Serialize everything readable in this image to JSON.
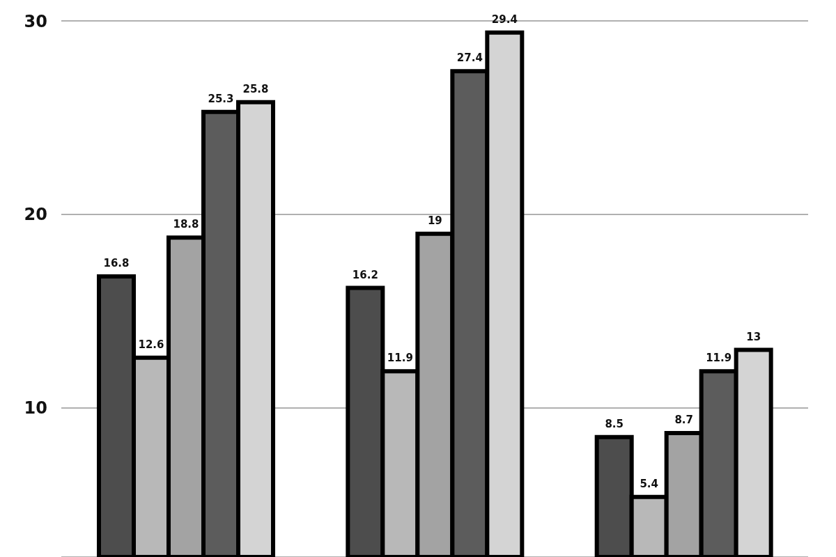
{
  "chart_data": {
    "type": "bar",
    "categories": [
      null,
      null,
      null
    ],
    "series": [
      {
        "color": "#4d4d4d",
        "values": [
          16.8,
          16.2,
          8.5
        ]
      },
      {
        "color": "#b8b8b8",
        "values": [
          12.6,
          11.9,
          5.4
        ]
      },
      {
        "color": "#a3a3a3",
        "values": [
          18.8,
          19,
          8.7
        ]
      },
      {
        "color": "#5c5c5c",
        "values": [
          25.3,
          27.4,
          11.9
        ]
      },
      {
        "color": "#d4d4d4",
        "values": [
          25.8,
          29.4,
          13
        ]
      }
    ],
    "ylim": [
      2.3,
      30
    ],
    "yticks": [
      10,
      20,
      30
    ],
    "grid": "y",
    "data_labels": true,
    "tick_labels": "y"
  }
}
